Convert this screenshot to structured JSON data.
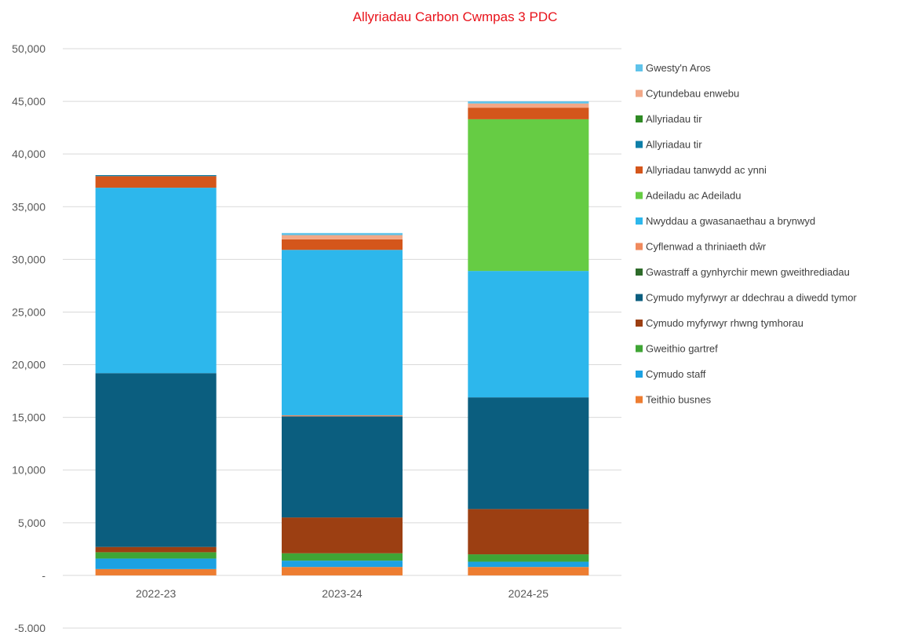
{
  "chart_data": {
    "type": "bar",
    "stacked": true,
    "title": "Allyriadau Carbon Cwmpas 3 PDC",
    "xlabel": "",
    "ylabel": "",
    "ylim": [
      -5000,
      50000
    ],
    "yticks": [
      {
        "value": 50000,
        "label": "50,000"
      },
      {
        "value": 45000,
        "label": "45,000"
      },
      {
        "value": 40000,
        "label": "40,000"
      },
      {
        "value": 35000,
        "label": "35,000"
      },
      {
        "value": 30000,
        "label": "30,000"
      },
      {
        "value": 25000,
        "label": "25,000"
      },
      {
        "value": 20000,
        "label": "20,000"
      },
      {
        "value": 15000,
        "label": "15,000"
      },
      {
        "value": 10000,
        "label": "10,000"
      },
      {
        "value": 5000,
        "label": "5,000"
      },
      {
        "value": 0,
        "label": "-"
      },
      {
        "value": -5000,
        "label": "-5,000"
      }
    ],
    "grid": true,
    "legend_position": "right",
    "categories": [
      "2022-23",
      "2023-24",
      "2024-25"
    ],
    "series": [
      {
        "name": "Teithio busnes",
        "color": "#ed7d31",
        "values": [
          600,
          800,
          800
        ]
      },
      {
        "name": "Cymudo staff",
        "color": "#1ba1e2",
        "values": [
          1000,
          600,
          500
        ]
      },
      {
        "name": "Gweithio gartref",
        "color": "#3fa535",
        "values": [
          600,
          700,
          700
        ]
      },
      {
        "name": "Cymudo myfyrwyr rhwng tymhorau",
        "color": "#9c3f12",
        "values": [
          500,
          3400,
          4300
        ]
      },
      {
        "name": "Cymudo myfyrwyr ar ddechrau a diwedd tymor",
        "color": "#0b5e7f",
        "values": [
          16500,
          9600,
          10600
        ]
      },
      {
        "name": "Gwastraff a gynhyrchir mewn gweithrediadau",
        "color": "#2e6b2a",
        "values": [
          0,
          0,
          0
        ]
      },
      {
        "name": "Cyflenwad a thriniaeth dŵr",
        "color": "#f08a5d",
        "values": [
          0,
          100,
          0
        ]
      },
      {
        "name": "Nwyddau a gwasanaethau a brynwyd",
        "color": "#2db7ec",
        "values": [
          17600,
          15700,
          12000
        ]
      },
      {
        "name": "Adeiladu ac Adeiladu",
        "color": "#66cc44",
        "values": [
          0,
          0,
          14400
        ]
      },
      {
        "name": "Allyriadau tanwydd ac ynni",
        "color": "#d4561b",
        "values": [
          1100,
          1000,
          1100
        ]
      },
      {
        "name": "Allyriadau tir",
        "color": "#0e7fa8",
        "values": [
          100,
          0,
          0
        ]
      },
      {
        "name": "Allyriadau tir",
        "color": "#2f8a24",
        "values": [
          0,
          0,
          0
        ]
      },
      {
        "name": "Cytundebau enwebu",
        "color": "#f2a887",
        "values": [
          0,
          400,
          400
        ]
      },
      {
        "name": "Gwesty'n Aros",
        "color": "#5fc3ea",
        "values": [
          0,
          200,
          200
        ]
      }
    ]
  }
}
